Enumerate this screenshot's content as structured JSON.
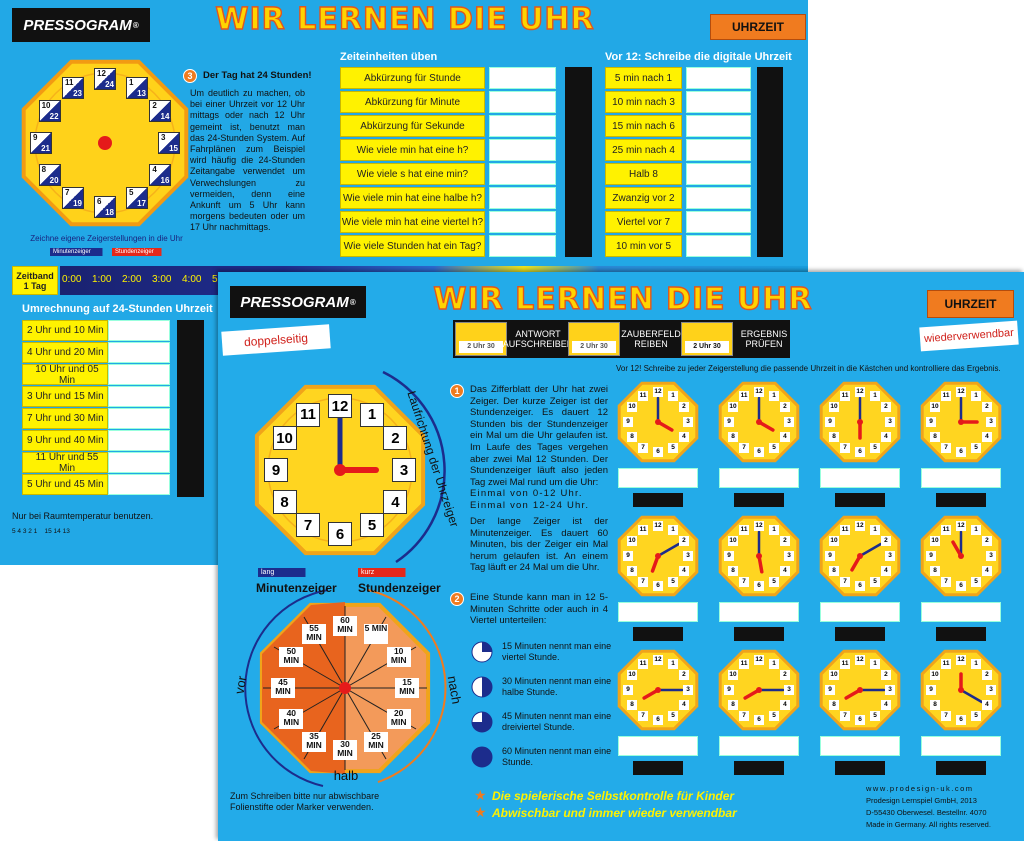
{
  "back": {
    "brand": "PRESSOGRAM",
    "reg": "®",
    "title": "WIR LERNEN DIE UHR",
    "badge": "UHRZEIT",
    "clock": {
      "hours": [
        "12",
        "1",
        "2",
        "3",
        "4",
        "5",
        "6",
        "7",
        "8",
        "9",
        "10",
        "11"
      ],
      "hours24": [
        "24",
        "13",
        "14",
        "15",
        "16",
        "17",
        "18",
        "19",
        "20",
        "21",
        "22",
        "23"
      ],
      "caption": "Zeichne eigene Zeigerstellungen in die Uhr",
      "minute_hand": "Minutenzeiger",
      "hour_hand": "Stundenzeiger"
    },
    "section3": {
      "number": "3",
      "heading": "Der Tag hat 24 Stunden!",
      "text": "Um deutlich zu machen, ob bei einer Uhrzeit vor 12 Uhr mittags oder nach 12 Uhr gemeint ist, benutzt man das 24-Stunden System. Auf Fahrplänen zum Beispiel wird häufig die 24-Stunden Zeitangabe verwendet um Verwechslungen zu vermeiden, denn eine Ankunft um 5 Uhr kann morgens bedeuten oder um 17 Uhr nachmittags."
    },
    "units": {
      "heading": "Zeiteinheiten üben",
      "rows": [
        "Abkürzung für Stunde",
        "Abkürzung für Minute",
        "Abkürzung für Sekunde",
        "Wie viele min hat eine h?",
        "Wie viele s hat eine min?",
        "Wie viele min hat eine halbe h?",
        "Wie viele min hat eine viertel h?",
        "Wie viele Stunden hat ein Tag?"
      ]
    },
    "digital": {
      "heading": "Vor 12: Schreibe die digitale Uhrzeit",
      "rows": [
        "5 min nach 1",
        "10 min nach 3",
        "15 min nach 6",
        "25 min nach 4",
        "Halb 8",
        "Zwanzig vor 2",
        "Viertel vor 7",
        "10 min vor 5"
      ]
    },
    "timeline": {
      "label": "Zeitband 1 Tag",
      "ticks": [
        "0:00",
        "1:00",
        "2:00",
        "3:00",
        "4:00",
        "5"
      ]
    },
    "conversion": {
      "heading": "Umrechnung auf 24-Stunden Uhrzeit",
      "rows": [
        "2 Uhr und 10 Min",
        "4 Uhr und 20 Min",
        "10 Uhr und 05 Min",
        "3 Uhr und 15 Min",
        "7 Uhr und 30 Min",
        "9 Uhr und 40 Min",
        "11 Uhr und 55 Min",
        "5 Uhr und 45 Min"
      ]
    },
    "note": "Nur bei Raumtemperatur benutzen.",
    "code": "5 4 3 2 1    15 14 13"
  },
  "front": {
    "brand": "PRESSOGRAM",
    "reg": "®",
    "title": "WIR LERNEN DIE UHR",
    "badge": "UHRZEIT",
    "steps": [
      "ANTWORT AUFSCHREIBEN",
      "ZAUBERFELD REIBEN",
      "ERGEBNIS PRÜFEN"
    ],
    "sample_time": "2 Uhr 30",
    "ribbon_left": "doppelseitig",
    "ribbon_right": "wiederverwendbar",
    "clock": {
      "numbers": [
        "12",
        "1",
        "2",
        "3",
        "4",
        "5",
        "6",
        "7",
        "8",
        "9",
        "10",
        "11"
      ],
      "direction": "Laufrichtung der Uhrzeiger",
      "long": "lang",
      "short": "kurz",
      "minute_hand": "Minutenzeiger",
      "hour_hand": "Stundenzeiger"
    },
    "minutes_clock": {
      "labels": [
        "5 MIN",
        "10 MIN",
        "15 MIN",
        "20 MIN",
        "25 MIN",
        "30 MIN",
        "35 MIN",
        "40 MIN",
        "45 MIN",
        "50 MIN",
        "55 MIN",
        "60 MIN"
      ],
      "before": "vor",
      "after": "nach",
      "half": "halb"
    },
    "pen_note": "Zum Schreiben bitte nur abwischbare Folienstifte oder Marker verwenden.",
    "section1": {
      "number": "1",
      "text": "Das Zifferblatt der Uhr hat zwei Zeiger. Der kurze Zeiger ist der Stundenzeiger. Es dauert 12 Stunden bis der Stundenzeiger ein Mal um die Uhr gelaufen ist. Im Laufe des Tages vergehen aber zwei Mal 12 Stunden. Der Stundenzeiger läuft also jeden Tag zwei Mal rund um die Uhr:",
      "lines": [
        "Einmal von 0-12 Uhr.",
        "Einmal von 12-24 Uhr."
      ],
      "text2": "Der lange Zeiger ist der Minutenzeiger. Es dauert 60 Minuten, bis der Zeiger ein Mal herum gelaufen ist. An einem Tag läuft er 24 Mal um die Uhr."
    },
    "section2": {
      "number": "2",
      "text": "Eine Stunde kann man in 12 5-Minuten Schritte oder auch in 4 Viertel unterteilen:",
      "items": [
        "15 Minuten nennt man eine viertel Stunde.",
        "30 Minuten nennt man eine halbe Stunde.",
        "45 Minuten nennt man eine dreiviertel Stunde.",
        "60 Minuten nennt man eine Stunde."
      ]
    },
    "instruction": "Vor 12! Schreibe zu jeder Zeigerstellung die passende Uhrzeit in die Kästchen und kontrolliere das Ergebnis.",
    "taglines": [
      "Die spielerische Selbstkontrolle für Kinder",
      "Abwischbar und immer wieder verwendbar"
    ],
    "imprint": [
      "www.prodesign-uk.com",
      "Prodesign Lernspiel GmbH, 2013",
      "D-55430 Oberwesel. Bestellnr. 4070",
      "Made in Germany. All rights reserved."
    ]
  }
}
